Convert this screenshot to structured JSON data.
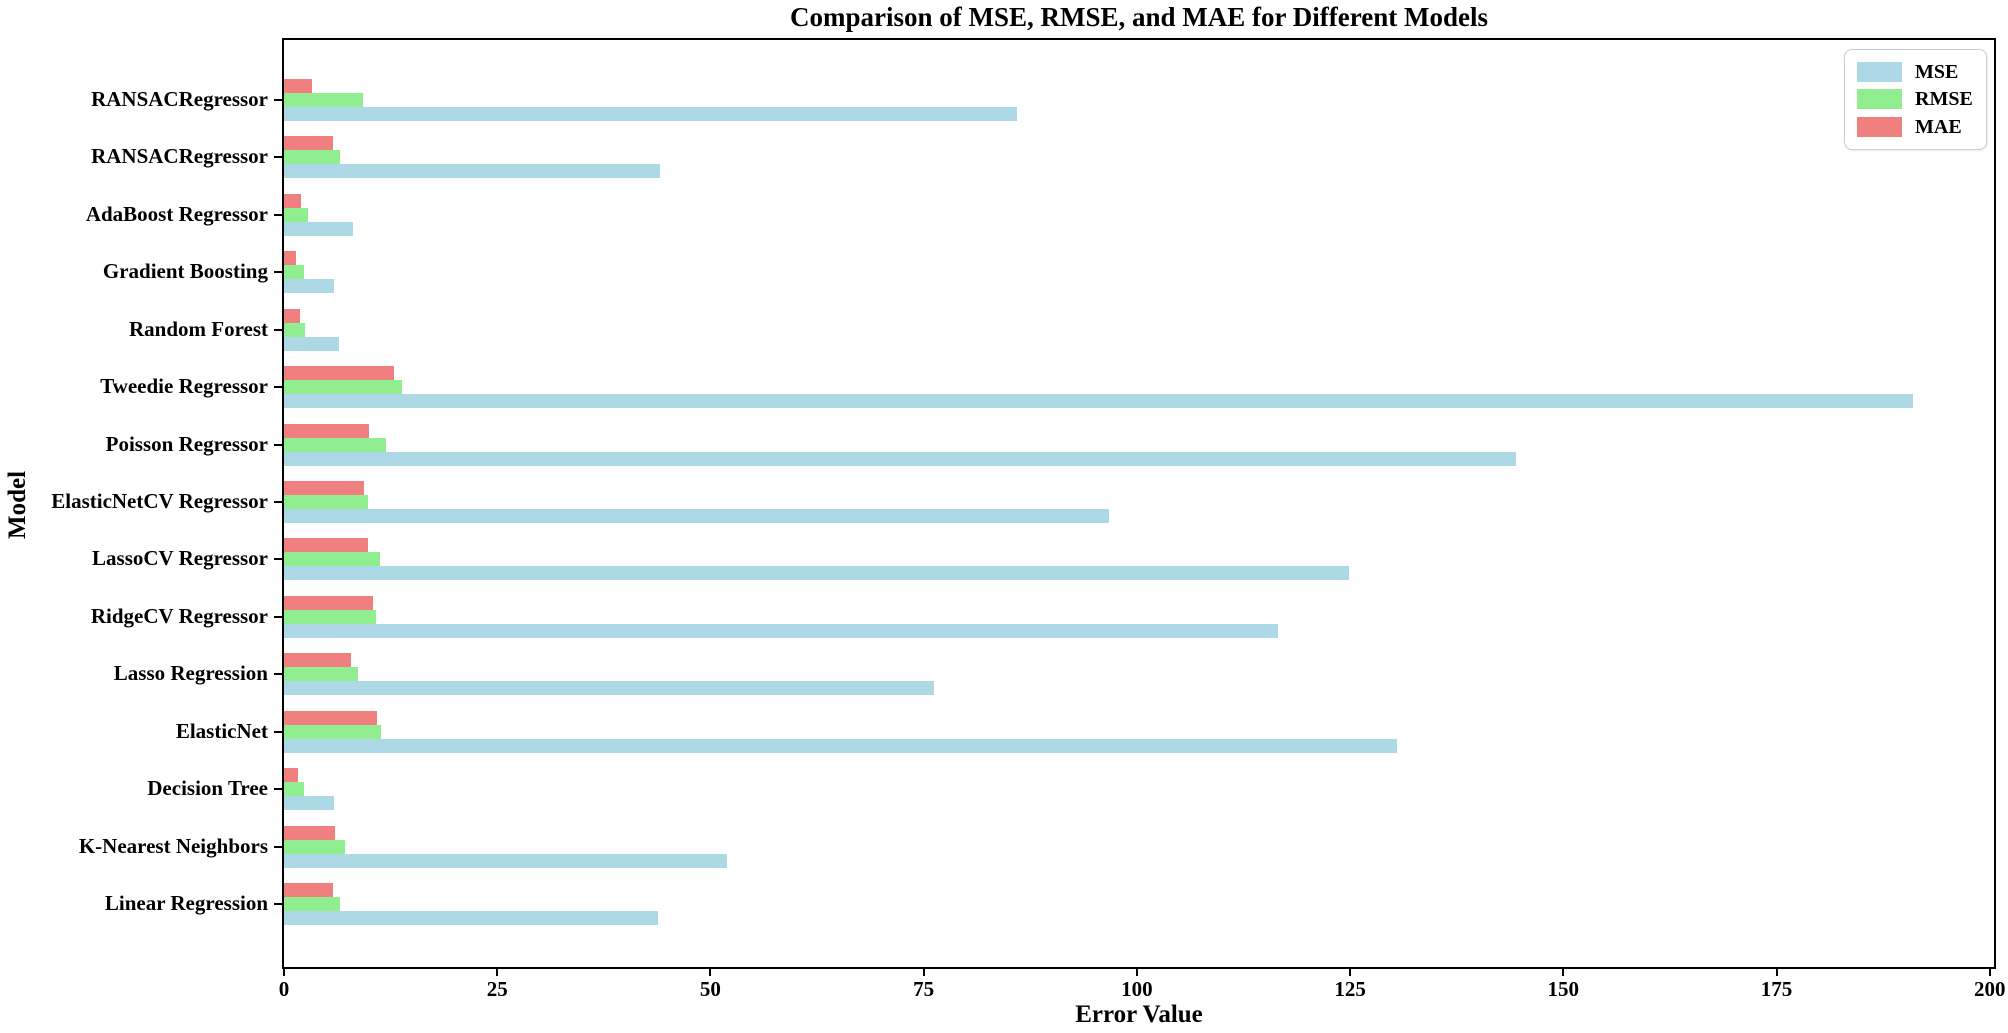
{
  "title": "Comparison of MSE, RMSE, and MAE for Different Models",
  "chart_data": {
    "type": "bar",
    "orientation": "horizontal",
    "title": "Comparison of MSE, RMSE, and MAE for Different Models",
    "xlabel": "Error Value",
    "ylabel": "Model",
    "xlim": [
      0,
      200
    ],
    "x_ticks": [
      0,
      25,
      50,
      75,
      100,
      125,
      150,
      175,
      200
    ],
    "grid": false,
    "legend_position": "upper right",
    "categories_top_to_bottom": [
      "RANSACRegressor",
      "RANSACRegressor",
      "AdaBoost Regressor",
      "Gradient Boosting",
      "Random Forest",
      "Tweedie Regressor",
      "Poisson Regressor",
      "ElasticNetCV Regressor",
      "LassoCV Regressor",
      "RidgeCV Regressor",
      "Lasso Regression",
      "ElasticNet",
      "Decision Tree",
      "K-Nearest Neighbors",
      "Linear Regression"
    ],
    "series": [
      {
        "name": "MSE",
        "color": "#ADD8E6",
        "values": [
          86.0,
          44.1,
          8.1,
          5.9,
          6.5,
          191.0,
          144.4,
          96.7,
          124.9,
          116.6,
          76.2,
          130.5,
          5.9,
          51.9,
          43.9
        ]
      },
      {
        "name": "RMSE",
        "color": "#90EE90",
        "values": [
          9.3,
          6.6,
          2.8,
          2.4,
          2.5,
          13.8,
          12.0,
          9.8,
          11.2,
          10.8,
          8.7,
          11.4,
          2.4,
          7.2,
          6.6
        ]
      },
      {
        "name": "MAE",
        "color": "#F08080",
        "values": [
          3.3,
          5.7,
          2.0,
          1.4,
          1.9,
          12.9,
          10.0,
          9.4,
          9.9,
          10.4,
          7.8,
          10.9,
          1.6,
          6.0,
          5.7
        ]
      }
    ]
  }
}
